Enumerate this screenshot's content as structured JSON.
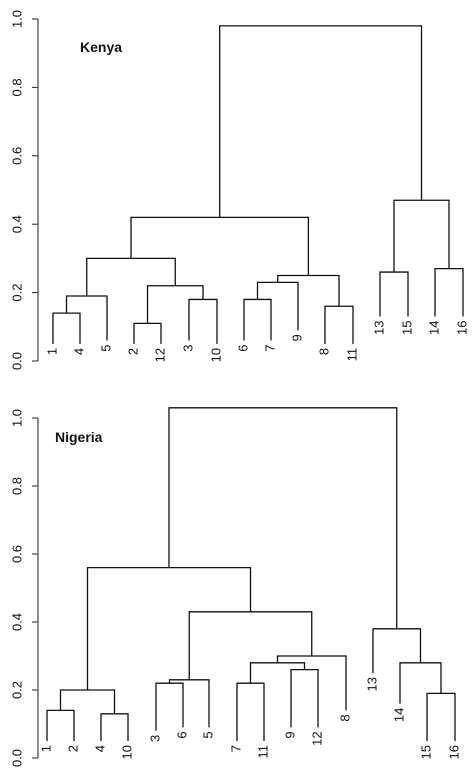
{
  "chart_data": [
    {
      "type": "dendrogram",
      "title": "Kenya",
      "ylim": [
        0,
        1.0
      ],
      "yticks": [
        "0.0",
        "0.2",
        "0.4",
        "0.6",
        "0.8",
        "1.0"
      ],
      "leaves": [
        "1",
        "4",
        "5",
        "2",
        "12",
        "3",
        "10",
        "6",
        "7",
        "9",
        "8",
        "11",
        "13",
        "15",
        "14",
        "16"
      ],
      "leaf_label_bottom": [
        0.05,
        0.05,
        0.06,
        0.05,
        0.05,
        0.06,
        0.05,
        0.06,
        0.06,
        0.09,
        0.05,
        0.05,
        0.13,
        0.13,
        0.13,
        0.13
      ],
      "merges": [
        {
          "left": "1",
          "right": "4",
          "height": 0.14
        },
        {
          "left": "2",
          "right": "12",
          "height": 0.11
        },
        {
          "left": "3",
          "right": "10",
          "height": 0.18
        },
        {
          "left": "6",
          "right": "7",
          "height": 0.18
        },
        {
          "left": "8",
          "right": "11",
          "height": 0.16
        },
        {
          "left": "13",
          "right": "15",
          "height": 0.26
        },
        {
          "left": "14",
          "right": "16",
          "height": 0.27
        },
        {
          "left": "(1,4)",
          "right": "5",
          "height": 0.19
        },
        {
          "left": "(2,12)",
          "right": "(3,10)",
          "height": 0.22
        },
        {
          "left": "(6,7)",
          "right": "9",
          "height": 0.23
        },
        {
          "left": "(6,7,9)",
          "right": "(8,11)",
          "height": 0.25
        },
        {
          "left": "(1,4,5)",
          "right": "(2,12,3,10)",
          "height": 0.3
        },
        {
          "left": "(1,4,5,2,12,3,10)",
          "right": "(6,7,9,8,11)",
          "height": 0.42
        },
        {
          "left": "(13,15)",
          "right": "(14,16)",
          "height": 0.47
        },
        {
          "left": "(1..11)",
          "right": "(13..16)",
          "height": 0.98
        }
      ]
    },
    {
      "type": "dendrogram",
      "title": "Nigeria",
      "ylim": [
        0,
        1.0
      ],
      "yticks": [
        "0.0",
        "0.2",
        "0.4",
        "0.6",
        "0.8",
        "1.0"
      ],
      "leaves": [
        "1",
        "2",
        "4",
        "10",
        "3",
        "6",
        "5",
        "7",
        "11",
        "9",
        "12",
        "8",
        "13",
        "14",
        "15",
        "16"
      ],
      "leaf_label_bottom": [
        0.05,
        0.05,
        0.05,
        0.05,
        0.08,
        0.09,
        0.09,
        0.05,
        0.05,
        0.09,
        0.09,
        0.14,
        0.25,
        0.16,
        0.05,
        0.05
      ],
      "merges": [
        {
          "left": "1",
          "right": "2",
          "height": 0.14
        },
        {
          "left": "4",
          "right": "10",
          "height": 0.13
        },
        {
          "left": "3",
          "right": "6",
          "height": 0.22
        },
        {
          "left": "7",
          "right": "11",
          "height": 0.22
        },
        {
          "left": "9",
          "right": "12",
          "height": 0.26
        },
        {
          "left": "15",
          "right": "16",
          "height": 0.19
        },
        {
          "left": "(1,2)",
          "right": "(4,10)",
          "height": 0.2
        },
        {
          "left": "(3,6)",
          "right": "5",
          "height": 0.23
        },
        {
          "left": "14",
          "right": "(15,16)",
          "height": 0.28
        },
        {
          "left": "(7,11)",
          "right": "(9,12)",
          "height": 0.28
        },
        {
          "left": "(7,11,9,12)",
          "right": "8",
          "height": 0.3
        },
        {
          "left": "13",
          "right": "(14,15,16)",
          "height": 0.38
        },
        {
          "left": "(3,6,5)",
          "right": "(7,11,9,12,8)",
          "height": 0.43
        },
        {
          "left": "(1,2,4,10)",
          "right": "(3..8)",
          "height": 0.56
        },
        {
          "left": "(1..8)",
          "right": "(13..16)",
          "height": 1.03
        }
      ]
    }
  ]
}
